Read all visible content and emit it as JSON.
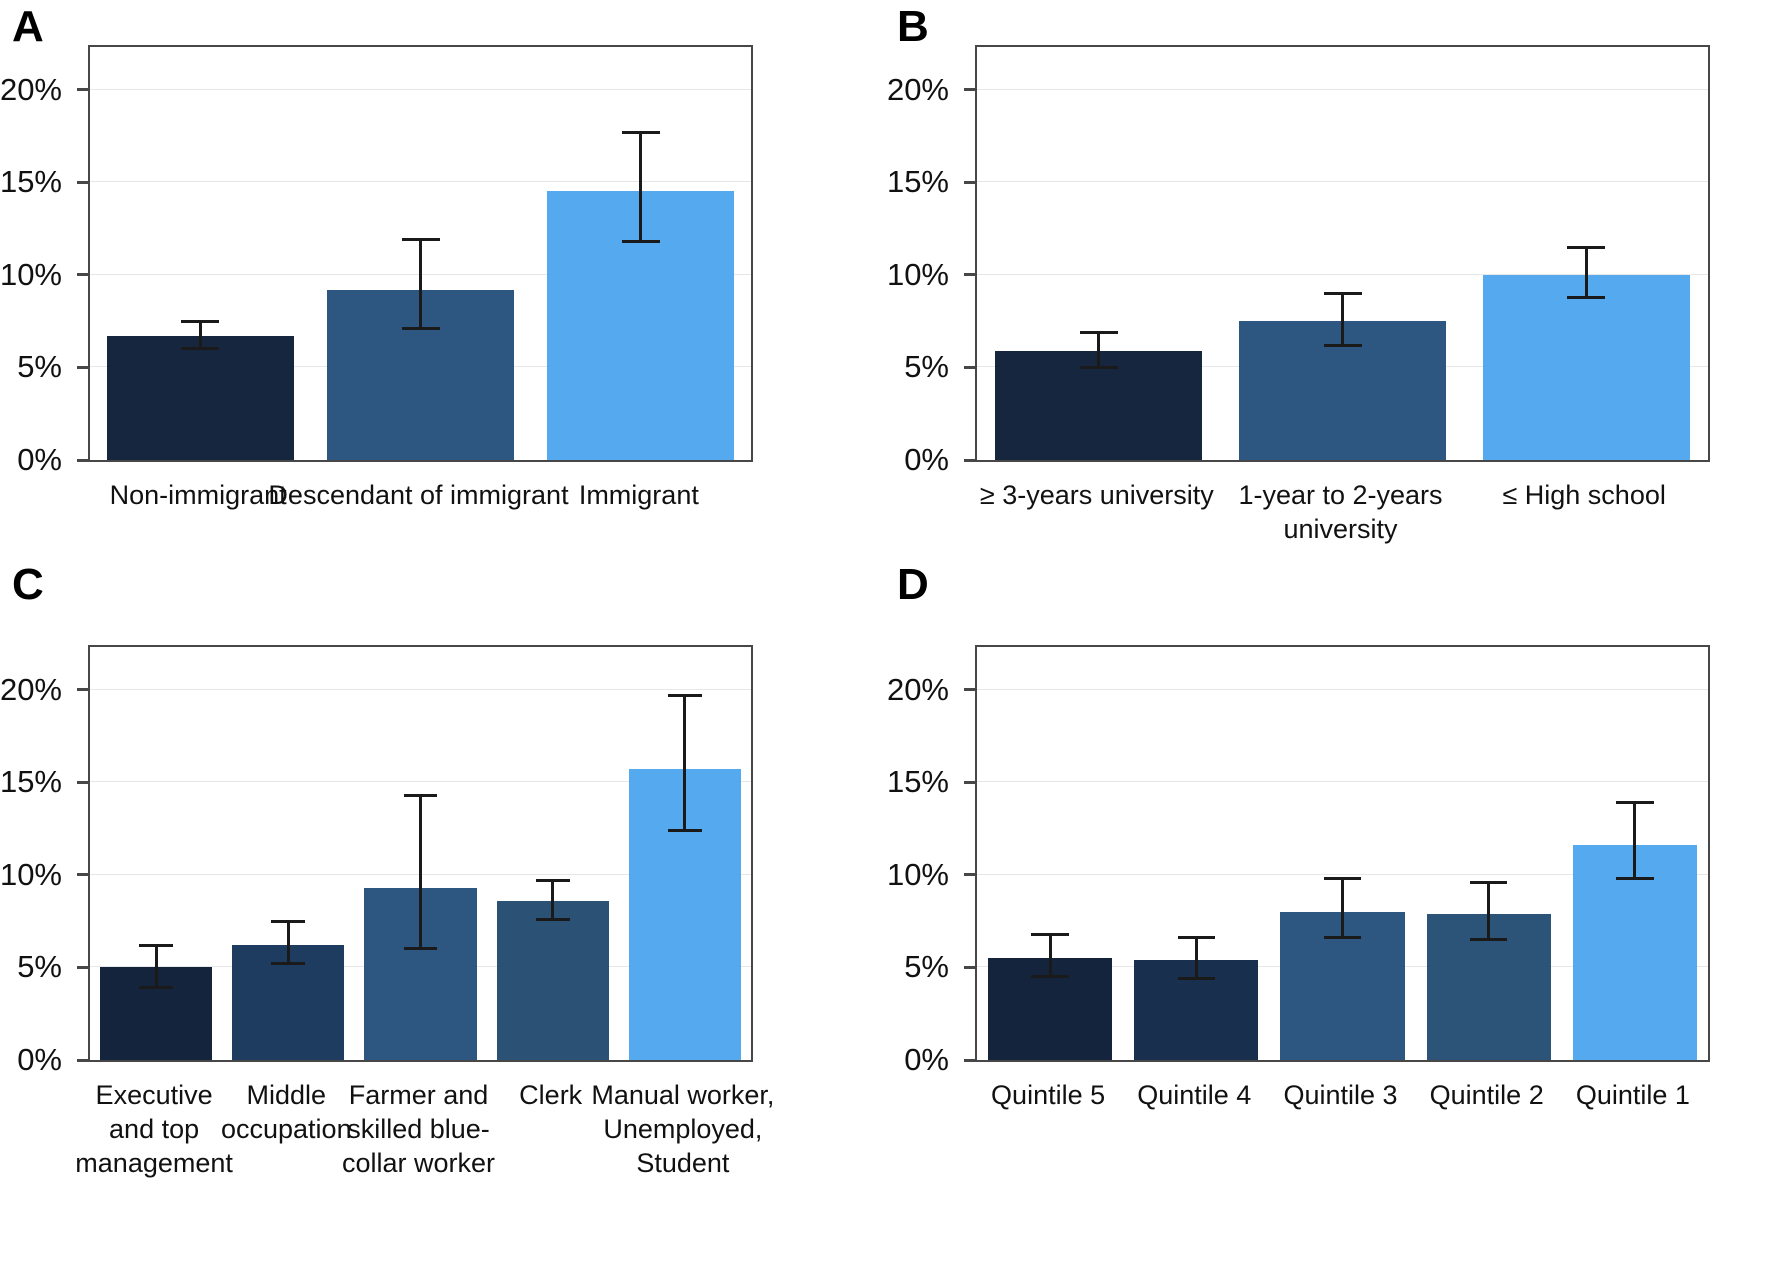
{
  "figure": {
    "background": "#ffffff",
    "border_color": "#474747",
    "grid_color": "#e7e7e7",
    "errorbar_color": "#1a1a1a",
    "text_color": "#111111"
  },
  "chart_data": [
    {
      "type": "bar",
      "panel": "A",
      "title": "",
      "xlabel": "",
      "ylabel": "",
      "categories": [
        "Non-immigrant",
        "Descendant of immigrant",
        "Immigrant"
      ],
      "values": [
        6.7,
        9.2,
        14.5
      ],
      "error_low": [
        6.0,
        7.1,
        11.8
      ],
      "error_high": [
        7.5,
        11.9,
        17.7
      ],
      "bar_colors": [
        "#16263e",
        "#2d5681",
        "#55aaef"
      ],
      "yticks": [
        0,
        5,
        10,
        15,
        20
      ],
      "ytick_labels": [
        "0%",
        "5%",
        "10%",
        "15%",
        "20%"
      ],
      "ylim": [
        0,
        22.3
      ],
      "grid": true,
      "legend": "none"
    },
    {
      "type": "bar",
      "panel": "B",
      "title": "",
      "xlabel": "",
      "ylabel": "",
      "categories": [
        "≥ 3-years university",
        "1-year to 2-years\nuniversity",
        "≤ High school"
      ],
      "values": [
        5.9,
        7.5,
        10.0
      ],
      "error_low": [
        5.0,
        6.2,
        8.8
      ],
      "error_high": [
        6.9,
        9.0,
        11.5
      ],
      "bar_colors": [
        "#16263e",
        "#2d5681",
        "#55aaef"
      ],
      "yticks": [
        0,
        5,
        10,
        15,
        20
      ],
      "ytick_labels": [
        "0%",
        "5%",
        "10%",
        "15%",
        "20%"
      ],
      "ylim": [
        0,
        22.3
      ],
      "grid": true,
      "legend": "none"
    },
    {
      "type": "bar",
      "panel": "C",
      "title": "",
      "xlabel": "",
      "ylabel": "",
      "categories": [
        "Executive\nand top\nmanagement",
        "Middle\noccupation",
        "Farmer and\nskilled blue-\ncollar worker",
        "Clerk",
        "Manual worker,\nUnemployed,\nStudent"
      ],
      "values": [
        5.0,
        6.2,
        9.3,
        8.6,
        15.7
      ],
      "error_low": [
        3.9,
        5.2,
        6.0,
        7.6,
        12.4
      ],
      "error_high": [
        6.2,
        7.5,
        14.3,
        9.7,
        19.7
      ],
      "bar_colors": [
        "#14243c",
        "#1d3c60",
        "#2d5681",
        "#2b5175",
        "#55aaef"
      ],
      "yticks": [
        0,
        5,
        10,
        15,
        20
      ],
      "ytick_labels": [
        "0%",
        "5%",
        "10%",
        "15%",
        "20%"
      ],
      "ylim": [
        0,
        22.3
      ],
      "grid": true,
      "legend": "none"
    },
    {
      "type": "bar",
      "panel": "D",
      "title": "",
      "xlabel": "",
      "ylabel": "",
      "categories": [
        "Quintile 5",
        "Quintile 4",
        "Quintile 3",
        "Quintile 2",
        "Quintile 1"
      ],
      "values": [
        5.5,
        5.4,
        8.0,
        7.9,
        11.6
      ],
      "error_low": [
        4.5,
        4.4,
        6.6,
        6.5,
        9.8
      ],
      "error_high": [
        6.8,
        6.6,
        9.8,
        9.6,
        13.9
      ],
      "bar_colors": [
        "#14243c",
        "#182f4e",
        "#2d5681",
        "#2b5478",
        "#55aaef"
      ],
      "yticks": [
        0,
        5,
        10,
        15,
        20
      ],
      "ytick_labels": [
        "0%",
        "5%",
        "10%",
        "15%",
        "20%"
      ],
      "ylim": [
        0,
        22.3
      ],
      "grid": true,
      "legend": "none"
    }
  ]
}
